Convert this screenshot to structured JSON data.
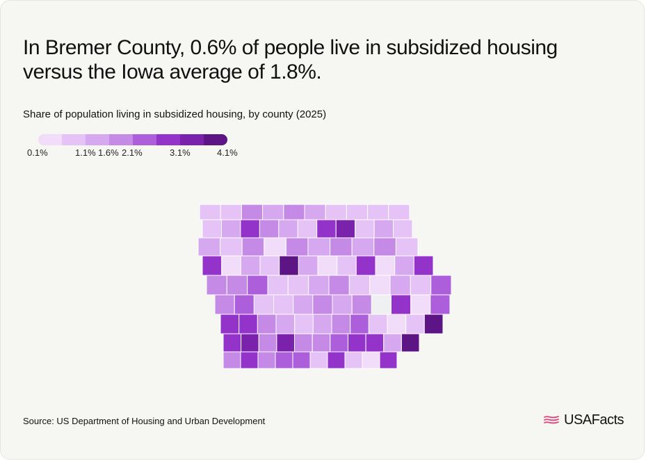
{
  "headline": "In Bremer County, 0.6% of people live in subsidized housing versus the Iowa average of 1.8%.",
  "subtitle": "Share of population living in subsidized housing, by county (2025)",
  "legend": {
    "colors": [
      "#f1ddfa",
      "#e5c3f6",
      "#d6a8ef",
      "#c58ae6",
      "#ad5fdb",
      "#9433c9",
      "#7a22ab",
      "#5d1585"
    ],
    "labels": [
      "0.1%",
      "1.1%",
      "1.6%",
      "2.1%",
      "3.1%",
      "4.1%"
    ]
  },
  "map": {
    "state": "Iowa",
    "selected_county": "Bremer County",
    "selected_value_pct": 0.6,
    "state_average_pct": 1.8,
    "no_data_color": "#eef0f2",
    "border_color": "#ffffff",
    "county_rows": [
      [
        1,
        1,
        3,
        2,
        3,
        2,
        1,
        1,
        1,
        1
      ],
      [
        1,
        2,
        5,
        3,
        2,
        1,
        5,
        6,
        1,
        2,
        1
      ],
      [
        2,
        1,
        3,
        0,
        3,
        2,
        3,
        2,
        3,
        1
      ],
      [
        5,
        0,
        2,
        1,
        7,
        2,
        0,
        1,
        5,
        0,
        2,
        5
      ],
      [
        3,
        3,
        4,
        1,
        1,
        2,
        3,
        1,
        0,
        2,
        1,
        4
      ],
      [
        3,
        4,
        1,
        1,
        2,
        3,
        2,
        3,
        -1,
        5,
        0,
        4
      ],
      [
        5,
        5,
        3,
        2,
        1,
        2,
        3,
        4,
        1,
        0,
        1,
        7
      ],
      [
        5,
        6,
        3,
        6,
        3,
        3,
        4,
        5,
        5,
        2,
        7
      ],
      [
        3,
        5,
        3,
        4,
        4,
        1,
        5,
        1,
        0,
        5
      ]
    ]
  },
  "source": "Source: US Department of Housing and Urban Development",
  "brand": {
    "name": "USAFacts",
    "icon": "usafacts-flag-icon",
    "accent": "#e0457b"
  }
}
